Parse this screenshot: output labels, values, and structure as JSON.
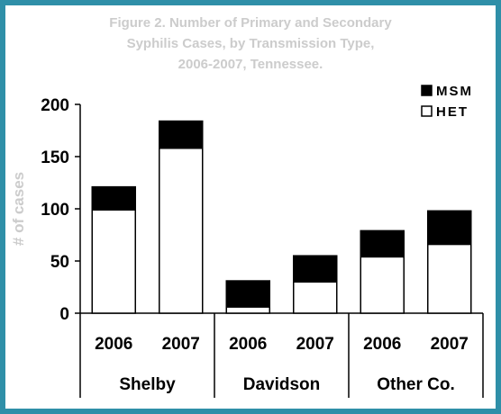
{
  "chart_data": {
    "type": "bar",
    "stacked": true,
    "title_lines": [
      "Figure 2. Number of Primary and Secondary",
      "Syphilis Cases, by Transmission Type,",
      "2006-2007, Tennessee."
    ],
    "ylabel": "# of cases",
    "ylim": [
      0,
      200
    ],
    "yticks": [
      0,
      50,
      100,
      150,
      200
    ],
    "categories": [
      "2006",
      "2007",
      "2006",
      "2007",
      "2006",
      "2007"
    ],
    "groups": [
      {
        "label": "Shelby",
        "span": [
          0,
          1
        ]
      },
      {
        "label": "Davidson",
        "span": [
          2,
          3
        ]
      },
      {
        "label": "Other Co.",
        "span": [
          4,
          5
        ]
      }
    ],
    "series": [
      {
        "name": "HET",
        "color": "#ffffff",
        "values": [
          99,
          158,
          6,
          30,
          54,
          66
        ]
      },
      {
        "name": "MSM",
        "color": "#000000",
        "values": [
          22,
          26,
          25,
          25,
          25,
          32
        ]
      }
    ],
    "legend": {
      "position": "top-right",
      "order": [
        "MSM",
        "HET"
      ]
    },
    "grid": false
  }
}
